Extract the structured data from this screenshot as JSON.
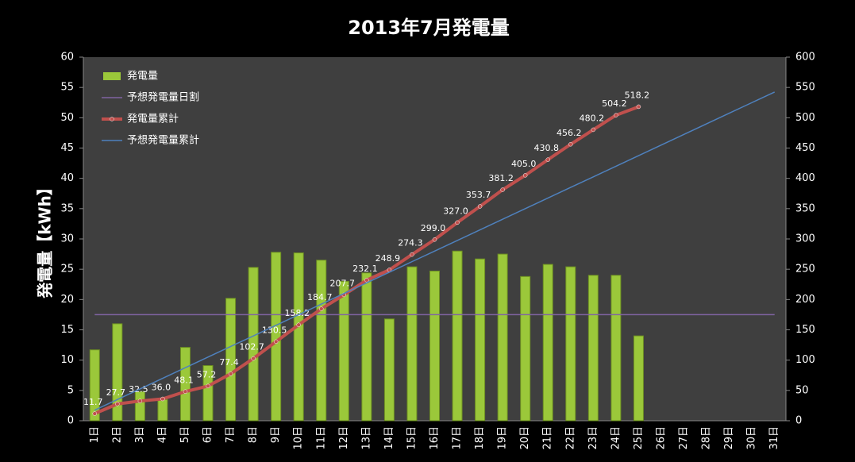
{
  "chart_data": {
    "type": "bar-line",
    "title": "2013年7月発電量",
    "y_label": "発電量【kWh】",
    "categories": [
      "1日",
      "2日",
      "3日",
      "4日",
      "5日",
      "6日",
      "7日",
      "8日",
      "9日",
      "10日",
      "11日",
      "12日",
      "13日",
      "14日",
      "15日",
      "16日",
      "17日",
      "18日",
      "19日",
      "20日",
      "21日",
      "22日",
      "23日",
      "24日",
      "25日",
      "26日",
      "27日",
      "28日",
      "29日",
      "30日",
      "31日"
    ],
    "series": [
      {
        "name": "発電量",
        "kind": "bar",
        "color": "#9bc83a",
        "values": [
          11.7,
          16.0,
          4.8,
          3.5,
          12.1,
          9.1,
          20.2,
          25.3,
          27.8,
          27.7,
          26.5,
          23.0,
          24.4,
          16.8,
          25.4,
          24.7,
          28.0,
          26.7,
          27.5,
          23.8,
          25.8,
          25.4,
          24.0,
          24.0,
          14.0,
          null,
          null,
          null,
          null,
          null,
          null
        ]
      },
      {
        "name": "予想発電量日割",
        "kind": "line",
        "color": "#8064a2",
        "values": [
          17.5,
          17.5,
          17.5,
          17.5,
          17.5,
          17.5,
          17.5,
          17.5,
          17.5,
          17.5,
          17.5,
          17.5,
          17.5,
          17.5,
          17.5,
          17.5,
          17.5,
          17.5,
          17.5,
          17.5,
          17.5,
          17.5,
          17.5,
          17.5,
          17.5,
          17.5,
          17.5,
          17.5,
          17.5,
          17.5,
          17.5
        ]
      },
      {
        "name": "発電量累計",
        "kind": "line",
        "axis": "y2",
        "markers": true,
        "color": "#c0504d",
        "values": [
          11.7,
          27.7,
          32.5,
          36,
          48.1,
          57.2,
          77.4,
          102.7,
          130.5,
          158.2,
          184.7,
          207.7,
          232.1,
          248.9,
          274.3,
          299,
          327,
          353.7,
          381.2,
          405,
          430.8,
          456.2,
          480.2,
          504.2,
          518.2,
          null,
          null,
          null,
          null,
          null,
          null
        ],
        "value_labels": [
          "11.7",
          "27.7",
          "32.5",
          "36.0",
          "48.1",
          "57.2",
          "77.4",
          "102.7",
          "130.5",
          "158.2",
          "184.7",
          "207.7",
          "232.1",
          "248.9",
          "274.3",
          "299.0",
          "327.0",
          "353.7",
          "381.2",
          "405.0",
          "430.8",
          "456.2",
          "480.2",
          "504.2",
          "518.2",
          null,
          null,
          null,
          null,
          null,
          null
        ]
      },
      {
        "name": "予想発電量累計",
        "kind": "line",
        "axis": "y2",
        "color": "#4f81bd",
        "values": [
          17.5,
          35,
          52.5,
          70,
          87.5,
          105,
          122.5,
          140,
          157.5,
          175,
          192.5,
          210,
          227.5,
          245,
          262.5,
          280,
          297.5,
          315,
          332.5,
          350,
          367.5,
          385,
          402.5,
          420,
          437.5,
          455,
          472.5,
          490,
          507.5,
          525,
          542.5
        ]
      }
    ],
    "ylim": [
      0,
      60
    ],
    "yticks": [
      0,
      5,
      10,
      15,
      20,
      25,
      30,
      35,
      40,
      45,
      50,
      55,
      60
    ],
    "y2lim": [
      0,
      600
    ],
    "y2ticks": [
      0,
      50,
      100,
      150,
      200,
      250,
      300,
      350,
      400,
      450,
      500,
      550,
      600
    ],
    "grid": false,
    "legend": "upper left"
  }
}
